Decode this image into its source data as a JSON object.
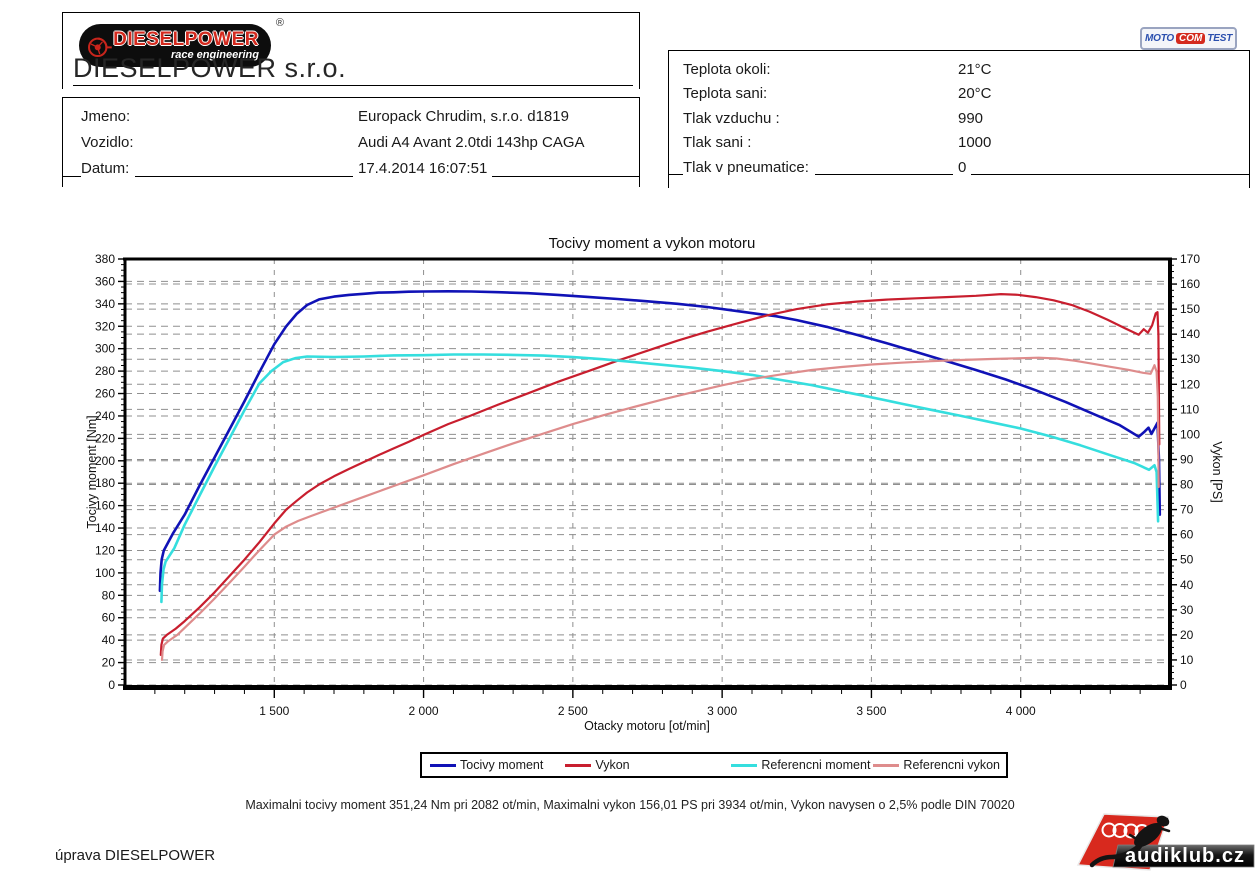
{
  "header": {
    "brand_box": {
      "logo": {
        "brand": "DIESELPOWER",
        "subtitle": "race engineering",
        "registered_mark": "®"
      },
      "company": "DIESELPOWER s.r.o."
    },
    "customer_box": {
      "rows": [
        {
          "label": "Jmeno:",
          "value": "Europack Chrudim, s.r.o. d1819"
        },
        {
          "label": "Vozidlo:",
          "value": "Audi A4 Avant 2.0tdi 143hp CAGA"
        },
        {
          "label": "Datum:",
          "value": "17.4.2014 16:07:51"
        }
      ]
    },
    "conditions_box": {
      "rows": [
        {
          "label": "Teplota okoli:",
          "value": "21°C"
        },
        {
          "label": "Teplota sani:",
          "value": "20°C"
        },
        {
          "label": "Tlak vzduchu :",
          "value": "990"
        },
        {
          "label": "Tlak sani :",
          "value": "1000"
        },
        {
          "label": "Tlak v pneumatice:",
          "value": "0"
        }
      ]
    },
    "motocom_logo": {
      "part1": "MOTO",
      "part2": "COM",
      "part3": "TEST"
    }
  },
  "chart_data": {
    "type": "line",
    "title": "Tocivy moment a vykon motoru",
    "xlabel": "Otacky motoru [ot/min]",
    "ylabel_left": "Tocivy moment [Nm]",
    "ylabel_right": "Vykon [PS]",
    "x_range": [
      1000,
      4500
    ],
    "x_ticks": [
      1500,
      2000,
      2500,
      3000,
      3500,
      4000
    ],
    "x_tick_labels": [
      "1 500",
      "2 000",
      "2 500",
      "3 000",
      "3 500",
      "4 000"
    ],
    "x_minor_step": 100,
    "y_left_range": [
      0,
      380
    ],
    "y_left_step": 20,
    "y_left_minor_step": 5,
    "y_right_range": [
      0,
      170
    ],
    "y_right_step": 10,
    "y_right_minor_step": 2.5,
    "grid": true,
    "legend_position": "bottom",
    "max_torque_nm": 351.24,
    "max_torque_rpm": 2082,
    "max_power_ps": 156.01,
    "max_power_rpm": 3934,
    "series": [
      {
        "name": "Tocivy moment",
        "axis": "left",
        "color": "#1012b6",
        "width": 2.6,
        "points": [
          [
            1117,
            84
          ],
          [
            1119,
            100
          ],
          [
            1123,
            112
          ],
          [
            1130,
            120
          ],
          [
            1160,
            135
          ],
          [
            1200,
            152
          ],
          [
            1250,
            178
          ],
          [
            1300,
            203
          ],
          [
            1350,
            228
          ],
          [
            1400,
            253
          ],
          [
            1450,
            279
          ],
          [
            1500,
            304
          ],
          [
            1540,
            320
          ],
          [
            1575,
            331
          ],
          [
            1610,
            339
          ],
          [
            1650,
            344
          ],
          [
            1700,
            346.5
          ],
          [
            1750,
            348
          ],
          [
            1800,
            349
          ],
          [
            1850,
            350
          ],
          [
            1900,
            350.3
          ],
          [
            1950,
            350.8
          ],
          [
            2000,
            351
          ],
          [
            2082,
            351.2
          ],
          [
            2160,
            351
          ],
          [
            2250,
            350.4
          ],
          [
            2350,
            349.5
          ],
          [
            2450,
            348
          ],
          [
            2550,
            346.2
          ],
          [
            2650,
            344.3
          ],
          [
            2750,
            342.3
          ],
          [
            2850,
            340
          ],
          [
            2950,
            337.2
          ],
          [
            3050,
            333.5
          ],
          [
            3120,
            331
          ],
          [
            3180,
            329
          ],
          [
            3250,
            325.5
          ],
          [
            3350,
            319.5
          ],
          [
            3450,
            312.5
          ],
          [
            3550,
            305
          ],
          [
            3650,
            297
          ],
          [
            3750,
            289
          ],
          [
            3850,
            281
          ],
          [
            3950,
            272.5
          ],
          [
            4050,
            263
          ],
          [
            4150,
            252.5
          ],
          [
            4250,
            241
          ],
          [
            4330,
            232
          ],
          [
            4395,
            221.5
          ],
          [
            4415,
            226
          ],
          [
            4428,
            229.5
          ],
          [
            4438,
            224
          ],
          [
            4450,
            230
          ],
          [
            4458,
            234
          ],
          [
            4463,
            200
          ],
          [
            4466,
            152
          ]
        ]
      },
      {
        "name": "Vykon",
        "axis": "right",
        "color": "#c81e2e",
        "width": 2.2,
        "points": [
          [
            1120,
            12
          ],
          [
            1122,
            16
          ],
          [
            1127,
            18.5
          ],
          [
            1140,
            20
          ],
          [
            1170,
            22.5
          ],
          [
            1200,
            25.5
          ],
          [
            1250,
            31
          ],
          [
            1300,
            37
          ],
          [
            1350,
            43.5
          ],
          [
            1400,
            50
          ],
          [
            1450,
            57
          ],
          [
            1500,
            64.5
          ],
          [
            1540,
            70
          ],
          [
            1575,
            73.5
          ],
          [
            1610,
            76.8
          ],
          [
            1650,
            80
          ],
          [
            1700,
            83.3
          ],
          [
            1750,
            86.2
          ],
          [
            1800,
            89
          ],
          [
            1850,
            91.8
          ],
          [
            1900,
            94.4
          ],
          [
            1950,
            97
          ],
          [
            2000,
            99.8
          ],
          [
            2082,
            104.1
          ],
          [
            2160,
            107.6
          ],
          [
            2250,
            111.9
          ],
          [
            2350,
            116.4
          ],
          [
            2450,
            121
          ],
          [
            2550,
            125.2
          ],
          [
            2650,
            129.4
          ],
          [
            2750,
            133.4
          ],
          [
            2850,
            137.4
          ],
          [
            2950,
            141
          ],
          [
            3050,
            144.3
          ],
          [
            3150,
            147.5
          ],
          [
            3250,
            150
          ],
          [
            3350,
            151.9
          ],
          [
            3450,
            153
          ],
          [
            3550,
            153.8
          ],
          [
            3650,
            154.3
          ],
          [
            3750,
            154.8
          ],
          [
            3850,
            155.3
          ],
          [
            3934,
            156
          ],
          [
            3990,
            155.7
          ],
          [
            4050,
            154.8
          ],
          [
            4110,
            153.5
          ],
          [
            4170,
            151.7
          ],
          [
            4230,
            149
          ],
          [
            4290,
            145.8
          ],
          [
            4350,
            142.3
          ],
          [
            4395,
            139.8
          ],
          [
            4412,
            142
          ],
          [
            4426,
            140.6
          ],
          [
            4440,
            143.5
          ],
          [
            4452,
            148.3
          ],
          [
            4458,
            148.8
          ],
          [
            4461,
            140
          ],
          [
            4464,
            96
          ]
        ]
      },
      {
        "name": "Referencni moment",
        "axis": "left",
        "color": "#35dede",
        "width": 2.6,
        "points": [
          [
            1122,
            74
          ],
          [
            1124,
            90
          ],
          [
            1129,
            103
          ],
          [
            1136,
            110
          ],
          [
            1165,
            122
          ],
          [
            1200,
            143
          ],
          [
            1250,
            169
          ],
          [
            1300,
            195
          ],
          [
            1350,
            220
          ],
          [
            1400,
            245
          ],
          [
            1450,
            269
          ],
          [
            1490,
            280
          ],
          [
            1530,
            288
          ],
          [
            1570,
            291.5
          ],
          [
            1610,
            293
          ],
          [
            1700,
            292.6
          ],
          [
            1800,
            293
          ],
          [
            1900,
            294
          ],
          [
            2000,
            294.2
          ],
          [
            2100,
            294.8
          ],
          [
            2200,
            294.8
          ],
          [
            2300,
            294.5
          ],
          [
            2400,
            293.8
          ],
          [
            2500,
            292.5
          ],
          [
            2600,
            290.6
          ],
          [
            2700,
            288.2
          ],
          [
            2800,
            285.6
          ],
          [
            2900,
            283
          ],
          [
            3000,
            280
          ],
          [
            3100,
            276.6
          ],
          [
            3200,
            272
          ],
          [
            3300,
            267.5
          ],
          [
            3400,
            262
          ],
          [
            3500,
            256.6
          ],
          [
            3600,
            251
          ],
          [
            3700,
            245.5
          ],
          [
            3800,
            240
          ],
          [
            3900,
            234.4
          ],
          [
            4000,
            228.8
          ],
          [
            4100,
            221.8
          ],
          [
            4200,
            213.8
          ],
          [
            4300,
            205
          ],
          [
            4380,
            198
          ],
          [
            4430,
            192
          ],
          [
            4448,
            196
          ],
          [
            4455,
            190
          ],
          [
            4460,
            146
          ]
        ]
      },
      {
        "name": "Referencni vykon",
        "axis": "right",
        "color": "#de8c8c",
        "width": 2.2,
        "points": [
          [
            1124,
            10
          ],
          [
            1126,
            13.5
          ],
          [
            1131,
            16
          ],
          [
            1145,
            17.5
          ],
          [
            1175,
            20
          ],
          [
            1210,
            24
          ],
          [
            1250,
            28.5
          ],
          [
            1300,
            34.5
          ],
          [
            1350,
            40.8
          ],
          [
            1400,
            47.2
          ],
          [
            1450,
            53.8
          ],
          [
            1500,
            60
          ],
          [
            1540,
            63.2
          ],
          [
            1580,
            65.5
          ],
          [
            1620,
            67.3
          ],
          [
            1700,
            70.8
          ],
          [
            1800,
            75.1
          ],
          [
            1900,
            79.4
          ],
          [
            2000,
            83.7
          ],
          [
            2100,
            88.1
          ],
          [
            2200,
            92.3
          ],
          [
            2300,
            96.4
          ],
          [
            2400,
            100.3
          ],
          [
            2500,
            104.1
          ],
          [
            2600,
            107.6
          ],
          [
            2700,
            110.8
          ],
          [
            2800,
            113.9
          ],
          [
            2900,
            116.8
          ],
          [
            3000,
            119.6
          ],
          [
            3100,
            122.1
          ],
          [
            3200,
            124
          ],
          [
            3300,
            125.7
          ],
          [
            3400,
            126.9
          ],
          [
            3500,
            127.9
          ],
          [
            3600,
            128.6
          ],
          [
            3700,
            129.2
          ],
          [
            3800,
            129.7
          ],
          [
            3900,
            130.1
          ],
          [
            4000,
            130.4
          ],
          [
            4060,
            130.6
          ],
          [
            4120,
            130.3
          ],
          [
            4180,
            129.4
          ],
          [
            4240,
            128.2
          ],
          [
            4300,
            127
          ],
          [
            4360,
            125.8
          ],
          [
            4410,
            124.6
          ],
          [
            4435,
            124.2
          ],
          [
            4448,
            127.6
          ],
          [
            4455,
            125
          ],
          [
            4459,
            115
          ],
          [
            4462,
            79
          ]
        ]
      }
    ]
  },
  "summary": "Maximalni tocivy moment 351,24 Nm pri 2082 ot/min,  Maximalni vykon 156,01 PS pri 3934 ot/min,  Vykon navysen o 2,5% podle DIN 70020",
  "footer": {
    "note": "úprava DIESELPOWER",
    "audiklub_text": "audiklub.cz"
  }
}
